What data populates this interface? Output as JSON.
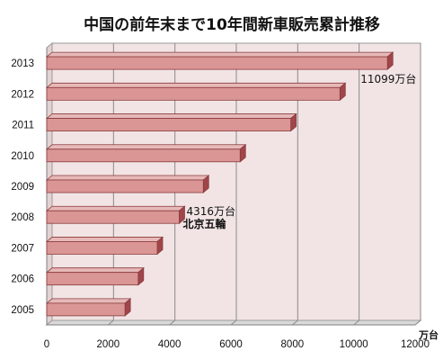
{
  "chart_data": {
    "type": "bar",
    "orientation": "horizontal",
    "title": "中国の前年末まで10年間新車販売累計推移",
    "categories": [
      "2005",
      "2006",
      "2007",
      "2008",
      "2009",
      "2010",
      "2011",
      "2012",
      "2013"
    ],
    "values": [
      2550,
      2980,
      3600,
      4316,
      5100,
      6300,
      7950,
      9550,
      11099
    ],
    "xlim": [
      0,
      12000
    ],
    "xticks": [
      "0",
      "2000",
      "4000",
      "6000",
      "8000",
      "10000",
      "12000"
    ],
    "x_unit": "万台",
    "grid": true,
    "legend": "none",
    "annotations": [
      {
        "category": "2013",
        "text": "11099万台"
      },
      {
        "category": "2008",
        "text": "4316万台"
      },
      {
        "category": "2008",
        "text": "北京五輪"
      }
    ],
    "colors": {
      "bar_front": "#d99694",
      "bar_top": "#e6b9b8",
      "bar_side": "#a0464a",
      "bar_outline": "#8b3a3e",
      "plot_back": "#f2e4e4",
      "grid": "#8a8a8a"
    }
  }
}
